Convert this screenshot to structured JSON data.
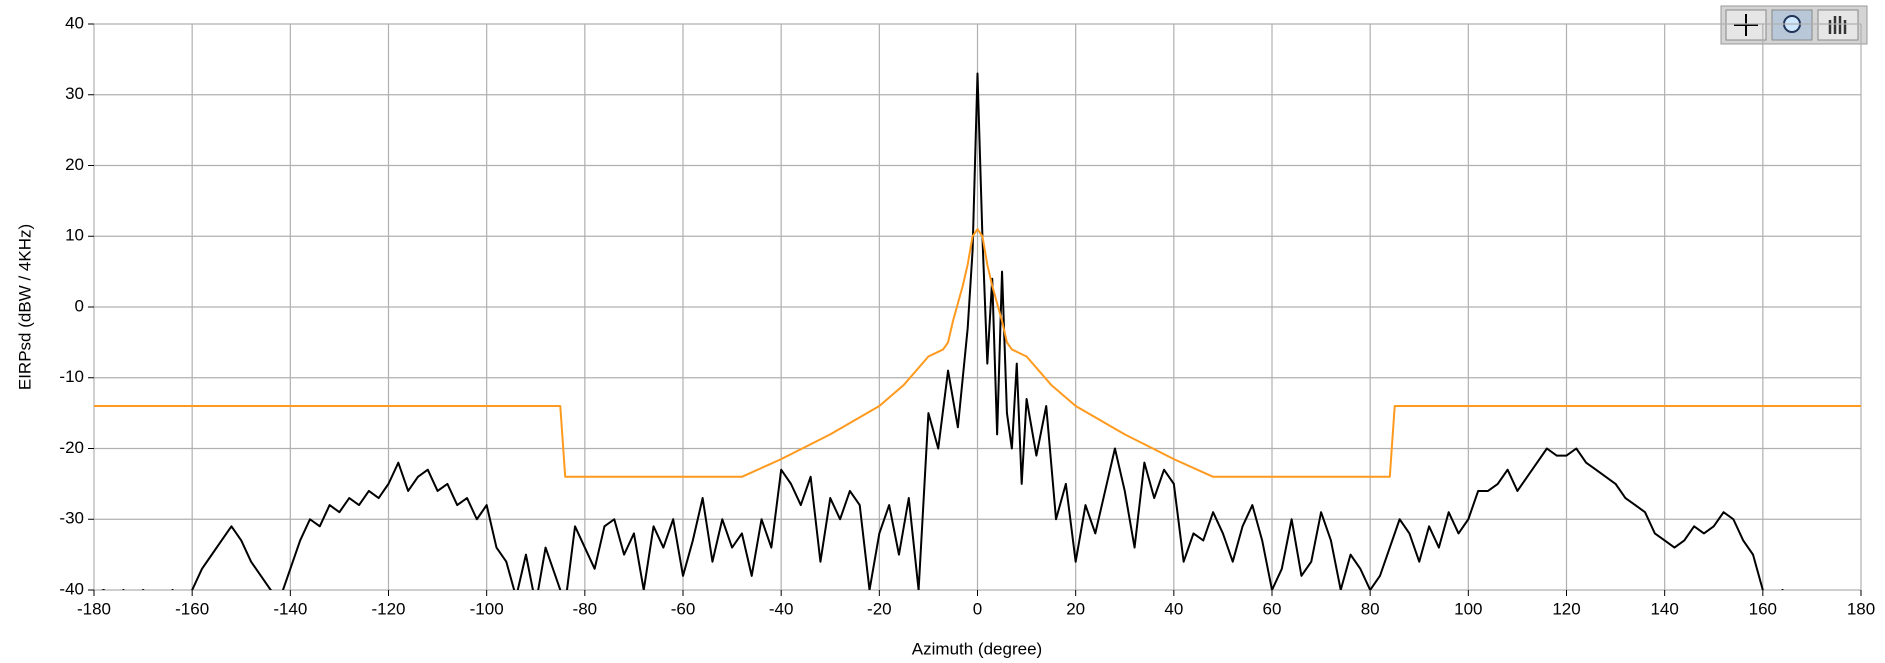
{
  "chart_data": {
    "type": "line",
    "xlabel": "Azimuth (degree)",
    "ylabel": "EIRPsd  (dBW / 4KHz)",
    "xlim": [
      -180,
      180
    ],
    "xticks": [
      -180,
      -160,
      -140,
      -120,
      -100,
      -80,
      -60,
      -40,
      -20,
      0,
      20,
      40,
      60,
      80,
      100,
      120,
      140,
      160,
      180
    ],
    "ylim": [
      -40,
      40
    ],
    "yticks": [
      -40,
      -30,
      -20,
      -10,
      0,
      10,
      20,
      30,
      40
    ],
    "grid": true,
    "series": [
      {
        "color": "#000000",
        "x": [
          -180,
          -178,
          -176,
          -174,
          -172,
          -170,
          -168,
          -166,
          -164,
          -162,
          -160,
          -158,
          -156,
          -154,
          -152,
          -150,
          -148,
          -146,
          -144,
          -142,
          -140,
          -138,
          -136,
          -134,
          -132,
          -130,
          -128,
          -126,
          -124,
          -122,
          -120,
          -118,
          -116,
          -114,
          -112,
          -110,
          -108,
          -106,
          -104,
          -102,
          -100,
          -98,
          -96,
          -94,
          -92,
          -90,
          -88,
          -86,
          -84,
          -82,
          -80,
          -78,
          -76,
          -74,
          -72,
          -70,
          -68,
          -66,
          -64,
          -62,
          -60,
          -58,
          -56,
          -54,
          -52,
          -50,
          -48,
          -46,
          -44,
          -42,
          -40,
          -38,
          -36,
          -34,
          -32,
          -30,
          -28,
          -26,
          -24,
          -22,
          -20,
          -18,
          -16,
          -14,
          -12,
          -10,
          -8,
          -6,
          -4,
          -2,
          -1,
          0,
          1,
          2,
          3,
          4,
          5,
          6,
          7,
          8,
          9,
          10,
          12,
          14,
          16,
          18,
          20,
          22,
          24,
          26,
          28,
          30,
          32,
          34,
          36,
          38,
          40,
          42,
          44,
          46,
          48,
          50,
          52,
          54,
          56,
          58,
          60,
          62,
          64,
          66,
          68,
          70,
          72,
          74,
          76,
          78,
          80,
          82,
          84,
          86,
          88,
          90,
          92,
          94,
          96,
          98,
          100,
          102,
          104,
          106,
          108,
          110,
          112,
          114,
          116,
          118,
          120,
          122,
          124,
          126,
          128,
          130,
          132,
          134,
          136,
          138,
          140,
          142,
          144,
          146,
          148,
          150,
          152,
          154,
          156,
          158,
          160,
          162,
          164,
          166,
          168
        ],
        "values": [
          -40.5,
          -40,
          -41,
          -40,
          -42,
          -40,
          -41,
          -42,
          -40,
          -42,
          -40,
          -37,
          -35,
          -33,
          -31,
          -33,
          -36,
          -38,
          -40,
          -41,
          -37,
          -33,
          -30,
          -31,
          -28,
          -29,
          -27,
          -28,
          -26,
          -27,
          -25,
          -22,
          -26,
          -24,
          -23,
          -26,
          -25,
          -28,
          -27,
          -30,
          -28,
          -34,
          -36,
          -41,
          -35,
          -42,
          -34,
          -38,
          -42,
          -31,
          -34,
          -37,
          -31,
          -30,
          -35,
          -32,
          -40,
          -31,
          -34,
          -30,
          -38,
          -33,
          -27,
          -36,
          -30,
          -34,
          -32,
          -38,
          -30,
          -34,
          -23,
          -25,
          -28,
          -24,
          -36,
          -27,
          -30,
          -26,
          -28,
          -40,
          -32,
          -28,
          -35,
          -27,
          -40,
          -15,
          -20,
          -9,
          -17,
          -3,
          8,
          33,
          10,
          -8,
          4,
          -18,
          5,
          -15,
          -20,
          -8,
          -25,
          -13,
          -21,
          -14,
          -30,
          -25,
          -36,
          -28,
          -32,
          -26,
          -20,
          -26,
          -34,
          -22,
          -27,
          -23,
          -25,
          -36,
          -32,
          -33,
          -29,
          -32,
          -36,
          -31,
          -28,
          -33,
          -40,
          -37,
          -30,
          -38,
          -36,
          -29,
          -33,
          -40,
          -35,
          -37,
          -40,
          -38,
          -34,
          -30,
          -32,
          -36,
          -31,
          -34,
          -29,
          -32,
          -30,
          -26,
          -26,
          -25,
          -23,
          -26,
          -24,
          -22,
          -20,
          -21,
          -21,
          -20,
          -22,
          -23,
          -24,
          -25,
          -27,
          -28,
          -29,
          -32,
          -33,
          -34,
          -33,
          -31,
          -32,
          -31,
          -29,
          -30,
          -33,
          -35,
          -40,
          -42,
          -40,
          -41,
          -42
        ]
      },
      {
        "color": "#ff9a1e",
        "x": [
          -180,
          -85,
          -84,
          -48,
          -40,
          -30,
          -20,
          -15,
          -10,
          -7,
          -6,
          -5,
          -3,
          -2,
          -1,
          0,
          1,
          2,
          3,
          5,
          6,
          7,
          10,
          15,
          20,
          30,
          40,
          48,
          84,
          85,
          180
        ],
        "values": [
          -14,
          -14,
          -24,
          -24,
          -21.5,
          -18,
          -14,
          -11,
          -7,
          -6,
          -5,
          -2,
          3,
          6,
          10,
          11,
          10,
          6,
          3,
          -2,
          -5,
          -6,
          -7,
          -11,
          -14,
          -18,
          -21.5,
          -24,
          -24,
          -14,
          -14
        ]
      }
    ]
  }
}
